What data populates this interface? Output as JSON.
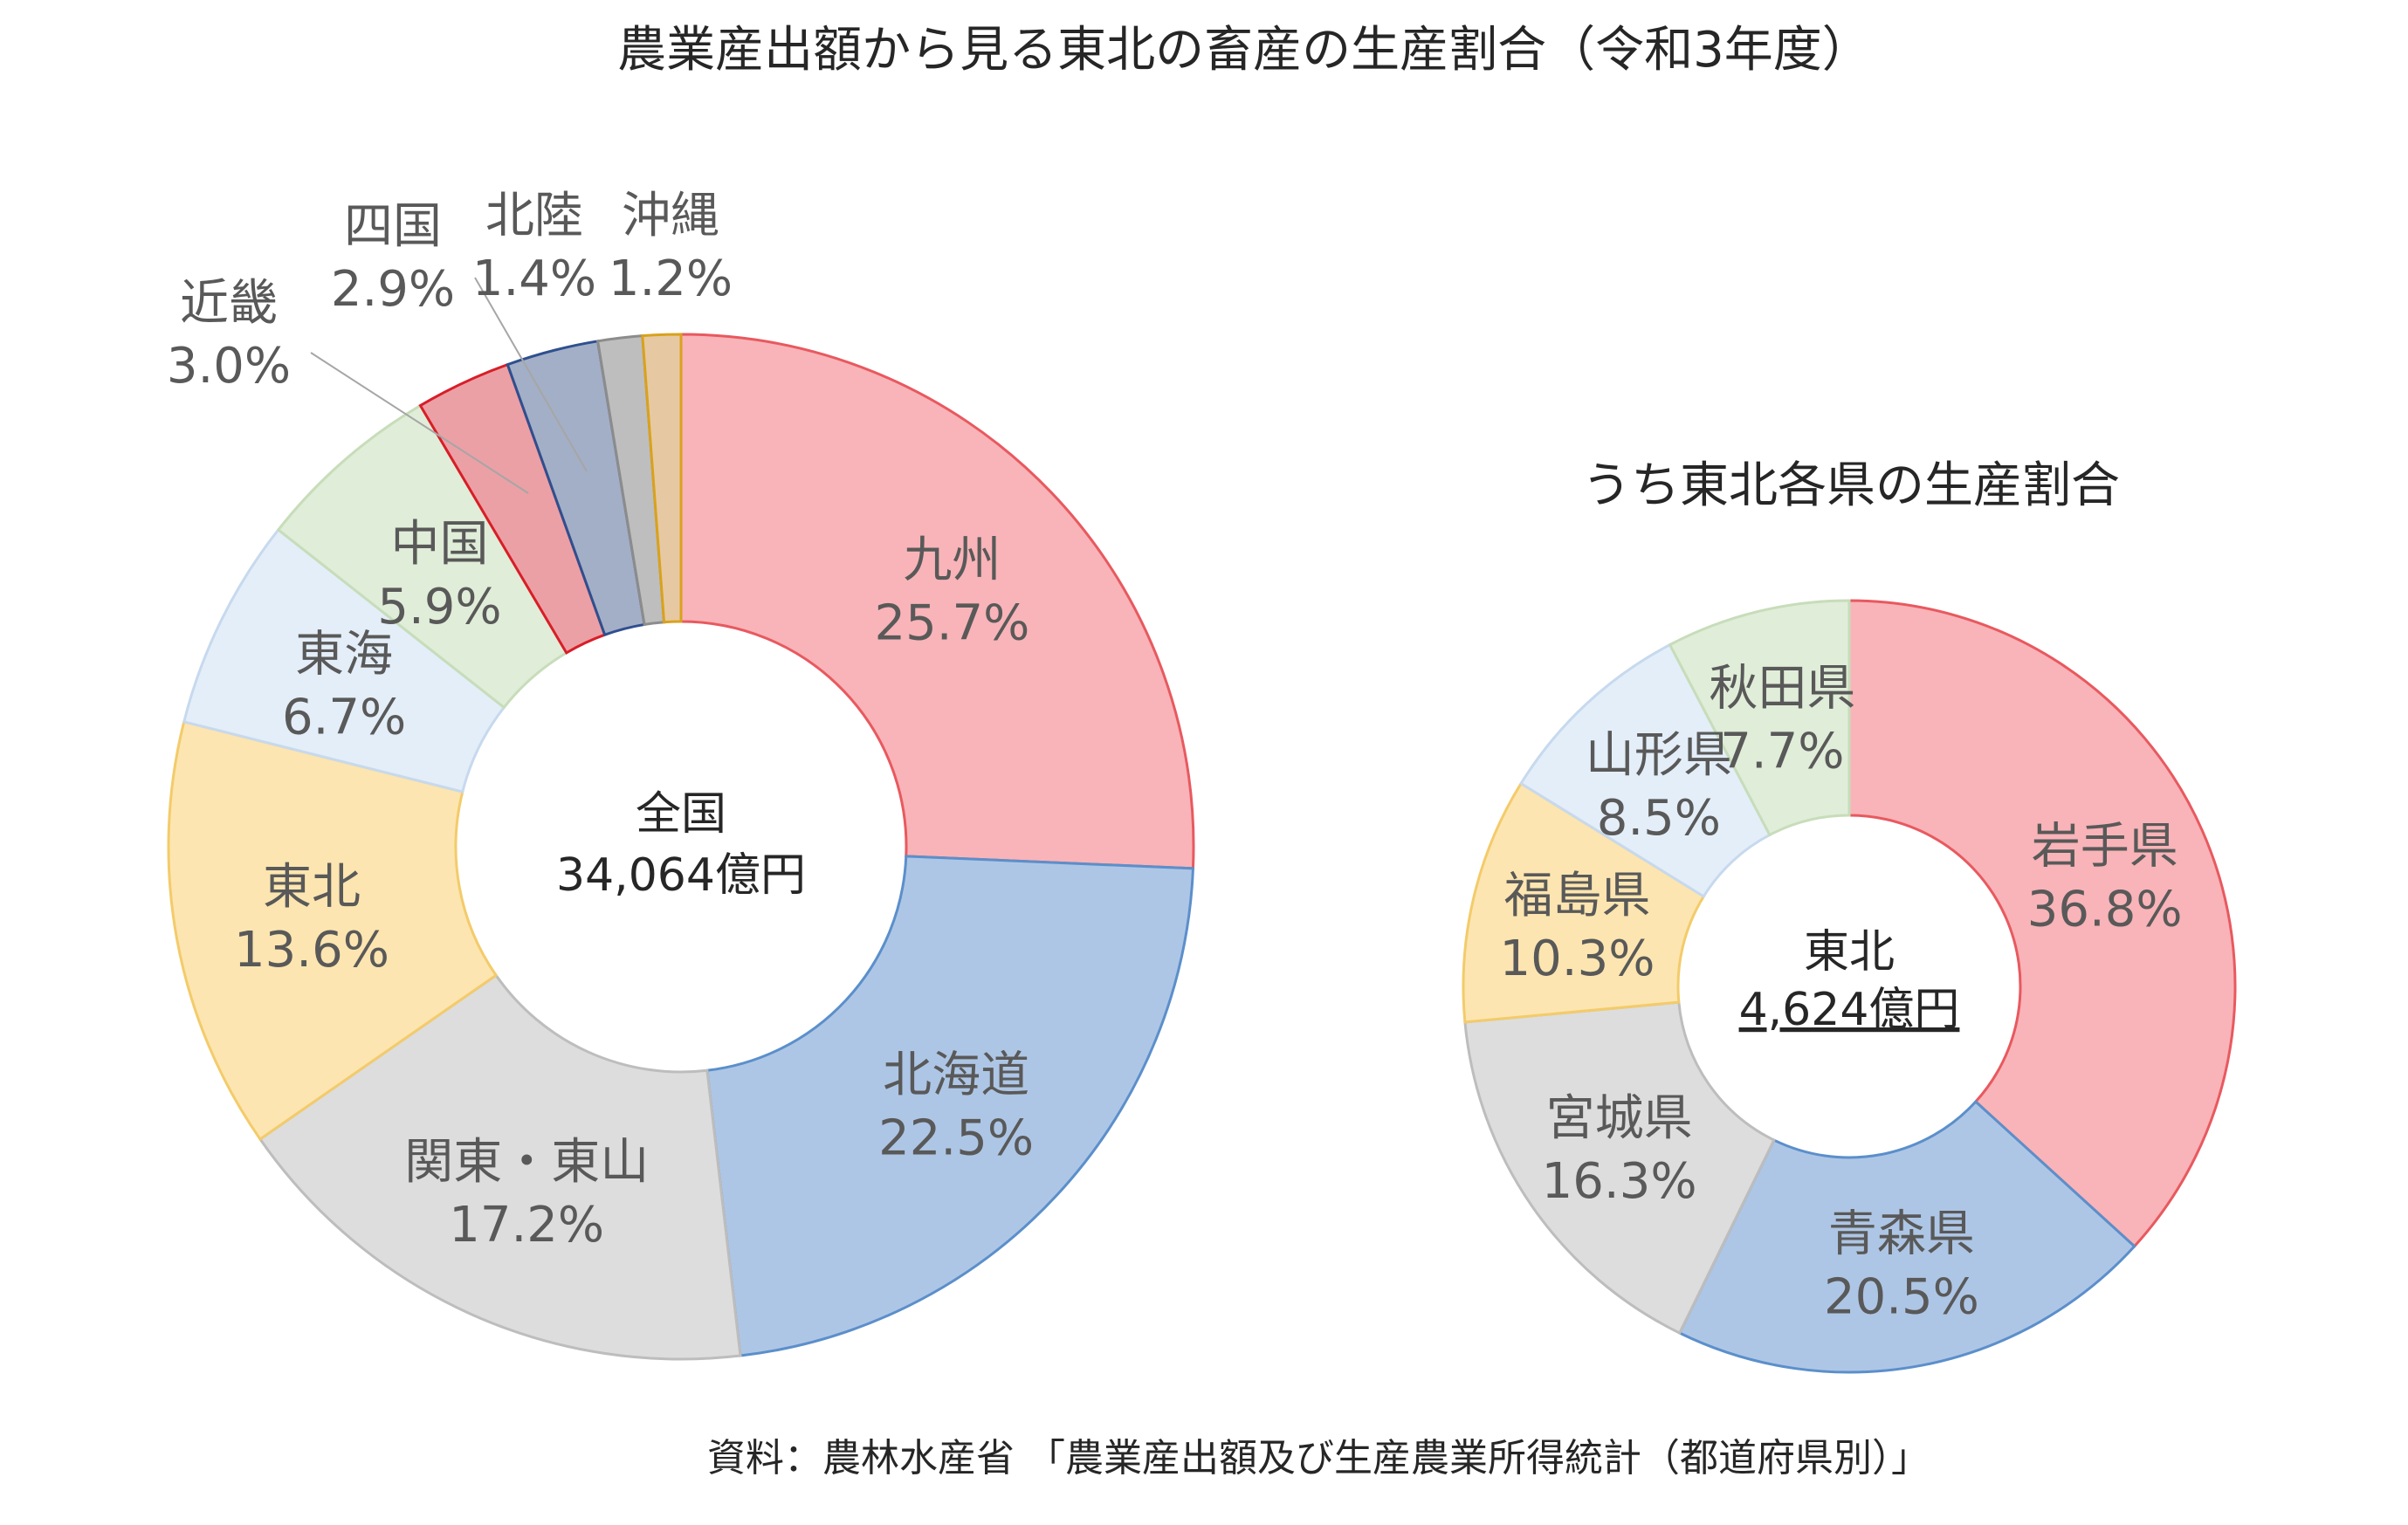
{
  "title": "農業産出額から見る東北の畜産の生産割合（令和3年度）",
  "source": "資料：農林水産省 「農業産出額及び生産農業所得統計（都道府県別）」",
  "chart_data": [
    {
      "type": "pie",
      "variant": "donut",
      "title": "",
      "center_label": [
        "全国",
        "34,064億円"
      ],
      "slices": [
        {
          "label": "九州",
          "value": 25.7,
          "value_text": "25.7%",
          "fill": "#F8B4B8",
          "stroke": "#E8595F"
        },
        {
          "label": "北海道",
          "value": 22.5,
          "value_text": "22.5%",
          "fill": "#AEC6E5",
          "stroke": "#5B8FCB"
        },
        {
          "label": "関東・東山",
          "value": 17.2,
          "value_text": "17.2%",
          "fill": "#DDDDDD",
          "stroke": "#BDBDBD"
        },
        {
          "label": "東北",
          "value": 13.6,
          "value_text": "13.6%",
          "fill": "#FCE5B0",
          "stroke": "#F3CB6A"
        },
        {
          "label": "東海",
          "value": 6.7,
          "value_text": "6.7%",
          "fill": "#E4EEF8",
          "stroke": "#C7D9EE"
        },
        {
          "label": "中国",
          "value": 5.9,
          "value_text": "5.9%",
          "fill": "#E0EDD8",
          "stroke": "#C7DDBA"
        },
        {
          "label": "近畿",
          "value": 3.0,
          "value_text": "3.0%",
          "fill": "#EBA0A5",
          "stroke": "#D81E28"
        },
        {
          "label": "四国",
          "value": 2.9,
          "value_text": "2.9%",
          "fill": "#A3AFC6",
          "stroke": "#2F4F8F"
        },
        {
          "label": "北陸",
          "value": 1.4,
          "value_text": "1.4%",
          "fill": "#BEBEBE",
          "stroke": "#8C8C8C"
        },
        {
          "label": "沖縄",
          "value": 1.2,
          "value_text": "1.2%",
          "fill": "#E6C9A2",
          "stroke": "#D9A21C"
        }
      ]
    },
    {
      "type": "pie",
      "variant": "donut",
      "title": "うち東北各県の生産割合",
      "center_label": [
        "東北",
        "4,624億円"
      ],
      "slices": [
        {
          "label": "岩手県",
          "value": 36.8,
          "value_text": "36.8%",
          "fill": "#F8B4B8",
          "stroke": "#E8595F"
        },
        {
          "label": "青森県",
          "value": 20.5,
          "value_text": "20.5%",
          "fill": "#AEC6E5",
          "stroke": "#5B8FCB"
        },
        {
          "label": "宮城県",
          "value": 16.3,
          "value_text": "16.3%",
          "fill": "#DDDDDD",
          "stroke": "#BDBDBD"
        },
        {
          "label": "福島県",
          "value": 10.3,
          "value_text": "10.3%",
          "fill": "#FCE5B0",
          "stroke": "#F3CB6A"
        },
        {
          "label": "山形県",
          "value": 8.5,
          "value_text": "8.5%",
          "fill": "#E4EEF8",
          "stroke": "#C7D9EE"
        },
        {
          "label": "秋田県",
          "value": 7.7,
          "value_text": "7.7%",
          "fill": "#E0EDD8",
          "stroke": "#C7DDBA"
        }
      ]
    }
  ]
}
